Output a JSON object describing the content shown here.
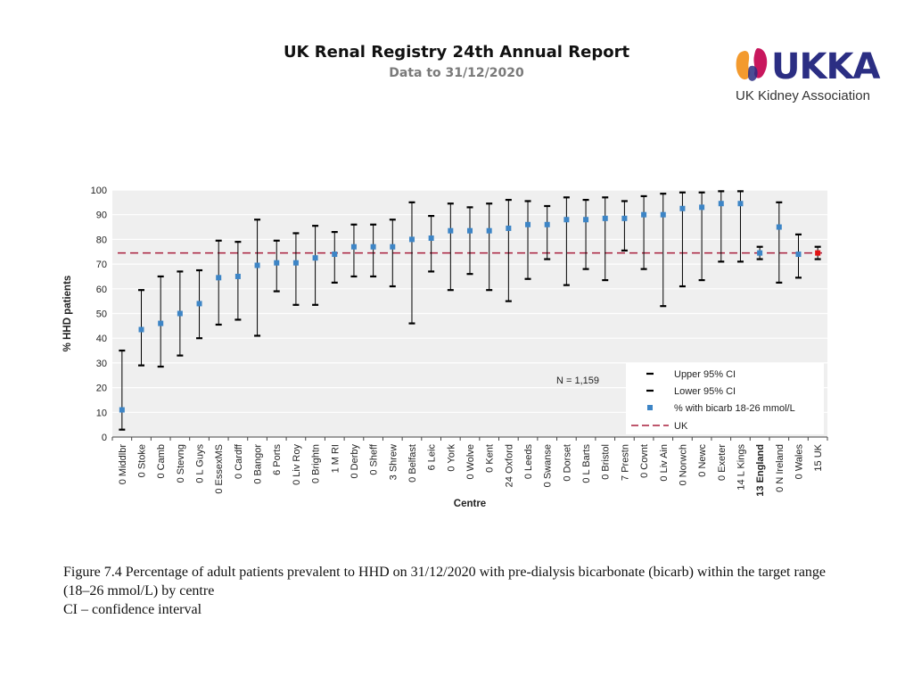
{
  "header": {
    "title": "UK Renal Registry 24th Annual Report",
    "subtitle": "Data to 31/12/2020"
  },
  "logo": {
    "text": "UKKA",
    "subtitle": "UK Kidney Association",
    "colors": {
      "orange": "#f39a2e",
      "magenta": "#c8175d",
      "blue": "#2b2e83"
    }
  },
  "chart_data": {
    "type": "scatter",
    "title": "",
    "xlabel": "Centre",
    "ylabel": "% HHD patients",
    "ylim": [
      0,
      100
    ],
    "yticks": [
      0,
      10,
      20,
      30,
      40,
      50,
      60,
      70,
      80,
      90,
      100
    ],
    "grid": true,
    "uk_value": 74.5,
    "annotation": "N = 1,159",
    "legend": {
      "position": "bottom-right",
      "upper": "Upper 95% CI",
      "lower": "Lower 95% CI",
      "point": "% with bicarb 18-26 mmol/L",
      "uk": "UK"
    },
    "colors": {
      "point": "#3d85c6",
      "uk_point": "#e11414",
      "uk_line": "#a81e3c",
      "ci": "#000000",
      "plot_bg": "#efefef"
    },
    "categories": [
      "0 Middlbr",
      "0 Stoke",
      "0 Camb",
      "0 Stevng",
      "0 L Guys",
      "0 EssexMS",
      "0 Cardff",
      "0 Bangor",
      "6 Ports",
      "0 Liv Roy",
      "0 Brightn",
      "1 M RI",
      "0 Derby",
      "0 Sheff",
      "3 Shrew",
      "0 Belfast",
      "6 Leic",
      "0 York",
      "0 Wolve",
      "0 Kent",
      "24 Oxford",
      "0 Leeds",
      "0 Swanse",
      "0 Dorset",
      "0 L Barts",
      "0 Bristol",
      "7 Prestn",
      "0 Covnt",
      "0 Liv Ain",
      "0 Norwch",
      "0 Newc",
      "0 Exeter",
      "14 L Kings",
      "13 England",
      "0 N Ireland",
      "0 Wales",
      "15 UK"
    ],
    "bold_indices": [
      33
    ],
    "series": [
      {
        "name": "% with bicarb 18-26 mmol/L",
        "values": [
          11,
          43.5,
          46,
          50,
          54,
          64.5,
          65,
          69.5,
          70.5,
          70.5,
          72.5,
          74,
          77,
          77,
          77,
          80,
          80.5,
          83.5,
          83.5,
          83.5,
          84.5,
          86,
          86,
          88,
          88,
          88.5,
          88.5,
          90,
          90,
          92.5,
          93,
          94.5,
          94.5,
          74.5,
          85,
          74,
          74.5
        ]
      },
      {
        "name": "Upper 95% CI",
        "values": [
          35,
          59.5,
          65,
          67,
          67.5,
          79.5,
          79,
          88,
          79.5,
          82.5,
          85.5,
          83,
          86,
          86,
          88,
          95,
          89.5,
          94.5,
          93,
          94.5,
          96,
          95.5,
          93.5,
          97,
          96,
          97,
          95.5,
          97.5,
          98.5,
          99,
          99,
          99.5,
          99.5,
          77,
          95,
          82,
          77
        ]
      },
      {
        "name": "Lower 95% CI",
        "values": [
          3,
          29,
          28.5,
          33,
          40,
          45.5,
          47.5,
          41,
          59,
          53.5,
          53.5,
          62.5,
          65,
          65,
          61,
          46,
          67,
          59.5,
          66,
          59.5,
          55,
          64,
          72,
          61.5,
          68,
          63.5,
          75.5,
          68,
          53,
          61,
          63.5,
          71,
          71,
          72,
          62.5,
          64.5,
          72
        ]
      }
    ]
  },
  "caption": {
    "line1": "Figure 7.4 Percentage of adult patients prevalent to HHD on 31/12/2020 with pre-dialysis bicarbonate (bicarb) within the target range",
    "line2": "(18–26 mmol/L) by centre",
    "line3": "CI – confidence interval"
  }
}
